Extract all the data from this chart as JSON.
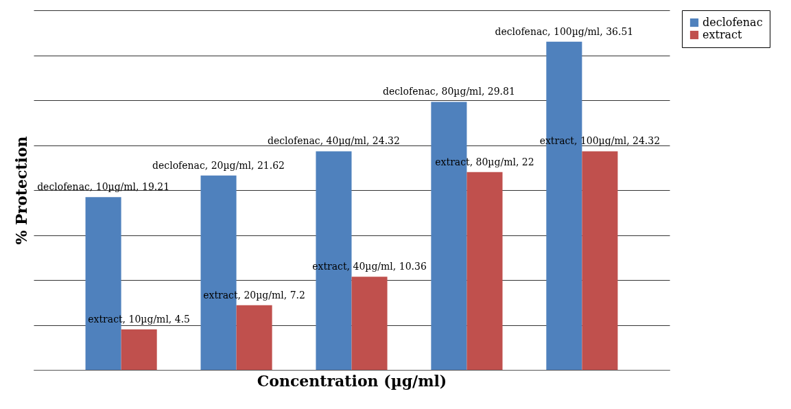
{
  "chart_data": {
    "type": "bar",
    "xlabel": "Concentration (µg/ml)",
    "ylabel": "% Protection",
    "categories": [
      null,
      null,
      null,
      null,
      null
    ],
    "series": [
      {
        "name": "declofenac",
        "color": "#4f81bd",
        "values": [
          19.21,
          21.62,
          24.32,
          29.81,
          36.51
        ],
        "value_labels": [
          "declofenac, 10µg/ml, 19.21",
          "declofenac, 20µg/ml, 21.62",
          "declofenac, 40µg/ml, 24.32",
          "declofenac, 80µg/ml, 29.81",
          "declofenac, 100µg/ml, 36.51"
        ]
      },
      {
        "name": "extract",
        "color": "#c0504d",
        "values": [
          4.5,
          7.2,
          10.36,
          22,
          24.32
        ],
        "value_labels": [
          "extract, 10µg/ml, 4.5",
          "extract, 20µg/ml, 7.2",
          "extract, 40µg/ml, 10.36",
          "extract, 80µg/ml, 22",
          "extract, 100µg/ml, 24.32"
        ]
      }
    ],
    "ylim": [
      0,
      40
    ],
    "yticks": [
      {
        "value": 0,
        "label": null
      },
      {
        "value": 5,
        "label": null
      },
      {
        "value": 10,
        "label": null
      },
      {
        "value": 15,
        "label": null
      },
      {
        "value": 20,
        "label": null
      },
      {
        "value": 25,
        "label": null
      },
      {
        "value": 30,
        "label": null
      },
      {
        "value": 35,
        "label": null
      },
      {
        "value": 40,
        "label": null
      }
    ],
    "grid": "y",
    "legend": "right"
  }
}
